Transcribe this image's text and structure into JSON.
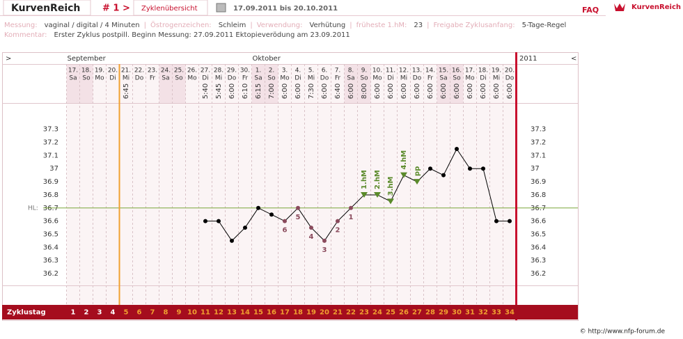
{
  "header": {
    "brand": "KurvenReich",
    "cycle": "# 1 >",
    "overview": "Zyklenübersicht",
    "range": "17.09.2011 bis 20.10.2011",
    "faq": "FAQ",
    "logo": "KurvenReich"
  },
  "info": {
    "items": [
      {
        "label": "Messung:",
        "value": "vaginal / digital / 4 Minuten"
      },
      {
        "label": "Östrogenzeichen:",
        "value": "Schleim"
      },
      {
        "label": "Verwendung:",
        "value": "Verhütung"
      },
      {
        "label": "früheste 1.hM:",
        "value": "23"
      },
      {
        "label": "Freigabe Zyklusanfang:",
        "value": "5-Tage-Regel"
      }
    ],
    "comment_label": "Kommentar:",
    "comment": "Erster Zyklus postpill. Beginn Messung: 27.09.2011 Ektopieverödung am 23.09.2011"
  },
  "chart_data": {
    "type": "line",
    "nav_left": ">",
    "nav_right": "<",
    "year": "2011",
    "months": [
      "September",
      null,
      null,
      null,
      null,
      null,
      null,
      null,
      null,
      null,
      null,
      null,
      null,
      null,
      "Oktober",
      null,
      null,
      null,
      null,
      null,
      null,
      null,
      null,
      null,
      null,
      null,
      null,
      null,
      null,
      null,
      null,
      null,
      null,
      null
    ],
    "categories": [
      "17.",
      "18.",
      "19.",
      "20.",
      "21.",
      "22.",
      "23.",
      "24.",
      "25.",
      "26.",
      "27.",
      "28.",
      "29.",
      "30.",
      "1.",
      "2.",
      "3.",
      "4.",
      "5.",
      "6.",
      "7.",
      "8.",
      "9.",
      "10.",
      "11.",
      "12.",
      "13.",
      "14.",
      "15.",
      "16.",
      "17.",
      "18.",
      "19.",
      "20."
    ],
    "weekdays": [
      "Sa",
      "So",
      "Mo",
      "Di",
      "Mi",
      "Do",
      "Fr",
      "Sa",
      "So",
      "Mo",
      "Di",
      "Mi",
      "Do",
      "Fr",
      "Sa",
      "So",
      "Mo",
      "Di",
      "Mi",
      "Do",
      "Fr",
      "Sa",
      "So",
      "Mo",
      "Di",
      "Mi",
      "Do",
      "Fr",
      "Sa",
      "So",
      "Mo",
      "Di",
      "Mi",
      "Do"
    ],
    "times": [
      null,
      null,
      null,
      null,
      "6:45",
      null,
      null,
      null,
      null,
      null,
      "5:40",
      "5:45",
      "6:00",
      "6:10",
      "6:15",
      "7:00",
      "6:00",
      "6:00",
      "7:30",
      "6:00",
      "6:40",
      "6:00",
      "8:00",
      "6:00",
      "6:00",
      "6:00",
      "6:00",
      "6:00",
      "6:00",
      "6:00",
      "6:00",
      "6:00",
      "6:00",
      "6:00"
    ],
    "values": [
      null,
      null,
      null,
      null,
      null,
      null,
      null,
      null,
      null,
      null,
      36.6,
      36.6,
      36.45,
      36.55,
      36.7,
      36.65,
      36.6,
      36.7,
      36.55,
      36.45,
      36.6,
      36.7,
      36.8,
      36.8,
      36.75,
      36.95,
      36.9,
      37.0,
      36.95,
      37.15,
      37.0,
      37.0,
      36.6,
      36.6
    ],
    "point_labels": [
      null,
      null,
      null,
      null,
      null,
      null,
      null,
      null,
      null,
      null,
      null,
      null,
      null,
      null,
      null,
      null,
      "6",
      "5",
      "4",
      "3",
      "2",
      "1",
      "1.hM",
      "2.hM",
      "3.hM",
      "4.hM",
      "pp",
      null,
      null,
      null,
      null,
      null,
      null,
      null
    ],
    "ylim": [
      36.11,
      37.5
    ],
    "yticks": [
      36.2,
      36.3,
      36.4,
      36.5,
      36.6,
      36.7,
      36.8,
      36.9,
      37,
      37.1,
      37.2,
      37.3
    ],
    "hl_label": "HL:",
    "hl_value": 36.7,
    "cycle_label": "Zyklustag",
    "cycle_days": [
      1,
      2,
      3,
      4,
      5,
      6,
      7,
      8,
      9,
      10,
      11,
      12,
      13,
      14,
      15,
      16,
      17,
      18,
      19,
      20,
      21,
      22,
      23,
      24,
      25,
      26,
      27,
      28,
      29,
      30,
      31,
      32,
      33,
      34
    ],
    "release_day": 5,
    "line_color": "#000000",
    "low_color": "#8a4a5c",
    "high_color": "#5a8a2a",
    "hl_color": "#7aa63a"
  },
  "footer": "© http://www.nfp-forum.de"
}
